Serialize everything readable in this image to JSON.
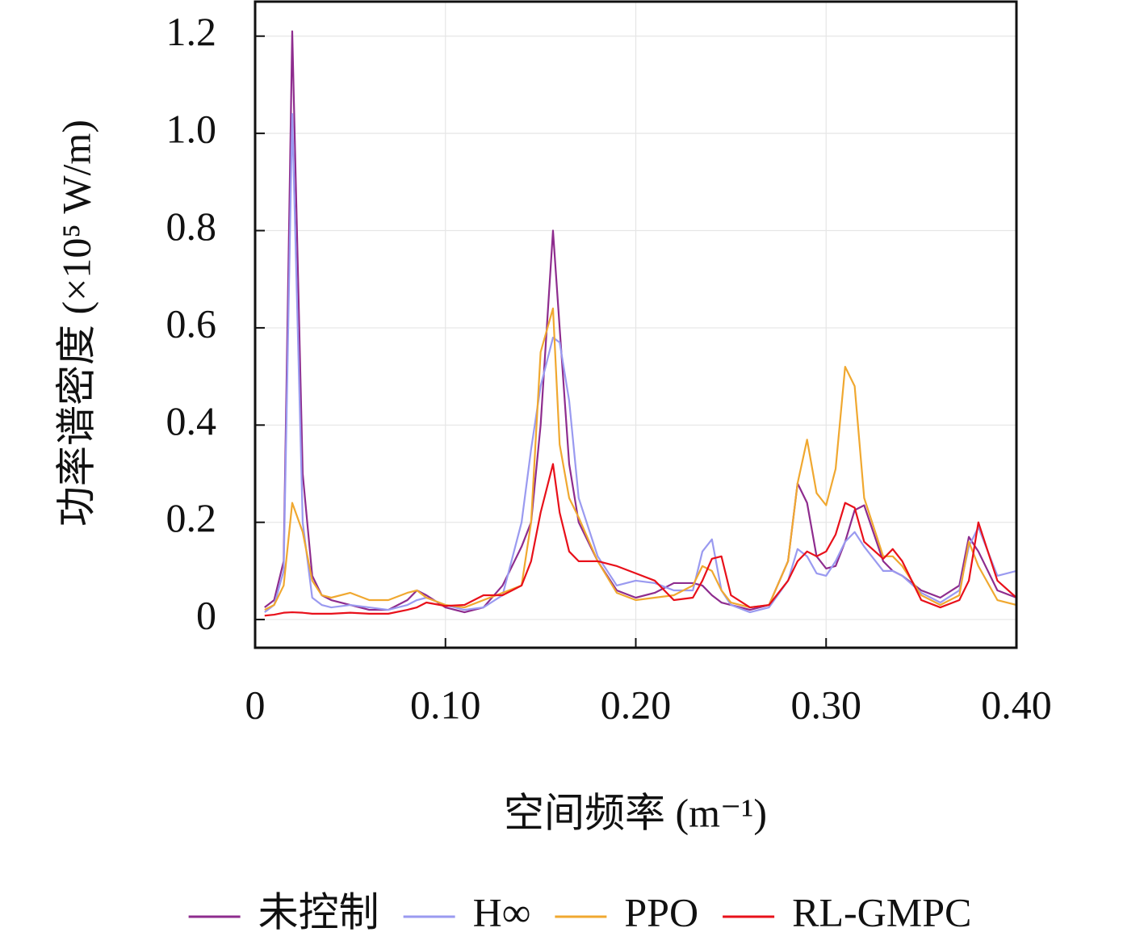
{
  "chart_data": {
    "type": "line",
    "xlabel": "空间频率 (m⁻¹)",
    "ylabel": "功率谱密度 (×10⁵ W/m)",
    "x": [
      0.005,
      0.01,
      0.015,
      0.0195,
      0.025,
      0.03,
      0.035,
      0.04,
      0.05,
      0.06,
      0.07,
      0.08,
      0.085,
      0.09,
      0.1,
      0.11,
      0.12,
      0.13,
      0.14,
      0.145,
      0.15,
      0.1565,
      0.16,
      0.165,
      0.17,
      0.18,
      0.19,
      0.2,
      0.21,
      0.22,
      0.23,
      0.235,
      0.24,
      0.245,
      0.25,
      0.26,
      0.27,
      0.28,
      0.285,
      0.29,
      0.295,
      0.3,
      0.305,
      0.31,
      0.315,
      0.32,
      0.33,
      0.335,
      0.34,
      0.35,
      0.36,
      0.37,
      0.375,
      0.38,
      0.39,
      0.4
    ],
    "series": [
      {
        "name": "未控制",
        "color": "#8e2c8e",
        "values": [
          0.025,
          0.04,
          0.12,
          1.21,
          0.3,
          0.09,
          0.05,
          0.04,
          0.03,
          0.02,
          0.02,
          0.04,
          0.06,
          0.05,
          0.025,
          0.015,
          0.025,
          0.07,
          0.15,
          0.2,
          0.4,
          0.8,
          0.6,
          0.32,
          0.2,
          0.12,
          0.06,
          0.045,
          0.055,
          0.075,
          0.075,
          0.07,
          0.05,
          0.035,
          0.03,
          0.02,
          0.03,
          0.12,
          0.28,
          0.24,
          0.13,
          0.105,
          0.11,
          0.16,
          0.225,
          0.235,
          0.12,
          0.1,
          0.09,
          0.06,
          0.045,
          0.07,
          0.17,
          0.14,
          0.06,
          0.045
        ]
      },
      {
        "name": "H∞",
        "color": "#9a9af0",
        "values": [
          0.015,
          0.03,
          0.1,
          1.04,
          0.2,
          0.045,
          0.03,
          0.025,
          0.03,
          0.025,
          0.02,
          0.03,
          0.04,
          0.045,
          0.03,
          0.02,
          0.025,
          0.05,
          0.2,
          0.35,
          0.48,
          0.58,
          0.57,
          0.45,
          0.25,
          0.13,
          0.07,
          0.08,
          0.075,
          0.06,
          0.06,
          0.14,
          0.165,
          0.06,
          0.03,
          0.015,
          0.025,
          0.08,
          0.145,
          0.13,
          0.095,
          0.09,
          0.12,
          0.16,
          0.18,
          0.15,
          0.1,
          0.1,
          0.09,
          0.055,
          0.035,
          0.06,
          0.15,
          0.19,
          0.09,
          0.1
        ]
      },
      {
        "name": "PPO",
        "color": "#f0a830",
        "values": [
          0.02,
          0.03,
          0.07,
          0.24,
          0.18,
          0.08,
          0.05,
          0.045,
          0.055,
          0.04,
          0.04,
          0.055,
          0.06,
          0.045,
          0.03,
          0.025,
          0.04,
          0.055,
          0.07,
          0.2,
          0.55,
          0.64,
          0.36,
          0.25,
          0.21,
          0.12,
          0.055,
          0.04,
          0.045,
          0.05,
          0.07,
          0.11,
          0.1,
          0.06,
          0.035,
          0.025,
          0.03,
          0.12,
          0.28,
          0.37,
          0.26,
          0.235,
          0.31,
          0.52,
          0.48,
          0.25,
          0.13,
          0.13,
          0.11,
          0.05,
          0.03,
          0.05,
          0.16,
          0.11,
          0.04,
          0.03
        ]
      },
      {
        "name": "RL-GMPC",
        "color": "#e8101a",
        "values": [
          0.008,
          0.01,
          0.014,
          0.015,
          0.014,
          0.012,
          0.012,
          0.012,
          0.014,
          0.012,
          0.012,
          0.02,
          0.025,
          0.035,
          0.028,
          0.03,
          0.05,
          0.05,
          0.07,
          0.12,
          0.22,
          0.32,
          0.22,
          0.14,
          0.12,
          0.12,
          0.11,
          0.095,
          0.08,
          0.04,
          0.045,
          0.08,
          0.125,
          0.13,
          0.05,
          0.025,
          0.03,
          0.08,
          0.12,
          0.14,
          0.13,
          0.14,
          0.175,
          0.24,
          0.23,
          0.16,
          0.125,
          0.145,
          0.12,
          0.04,
          0.025,
          0.04,
          0.08,
          0.2,
          0.08,
          0.045
        ]
      }
    ],
    "xlim": [
      0,
      0.4
    ],
    "ylim": [
      -0.058,
      1.271
    ],
    "xticks": [
      0,
      {
        "value": 0.1,
        "label": "0.10"
      },
      {
        "value": 0.2,
        "label": "0.20"
      },
      {
        "value": 0.3,
        "label": "0.30"
      },
      {
        "value": 0.4,
        "label": "0.40"
      }
    ],
    "yticks": [
      0,
      0.2,
      0.4,
      0.6,
      0.8,
      {
        "value": 1.0,
        "label": "1.0"
      },
      1.2
    ],
    "grid": true,
    "legend": "bottom"
  }
}
